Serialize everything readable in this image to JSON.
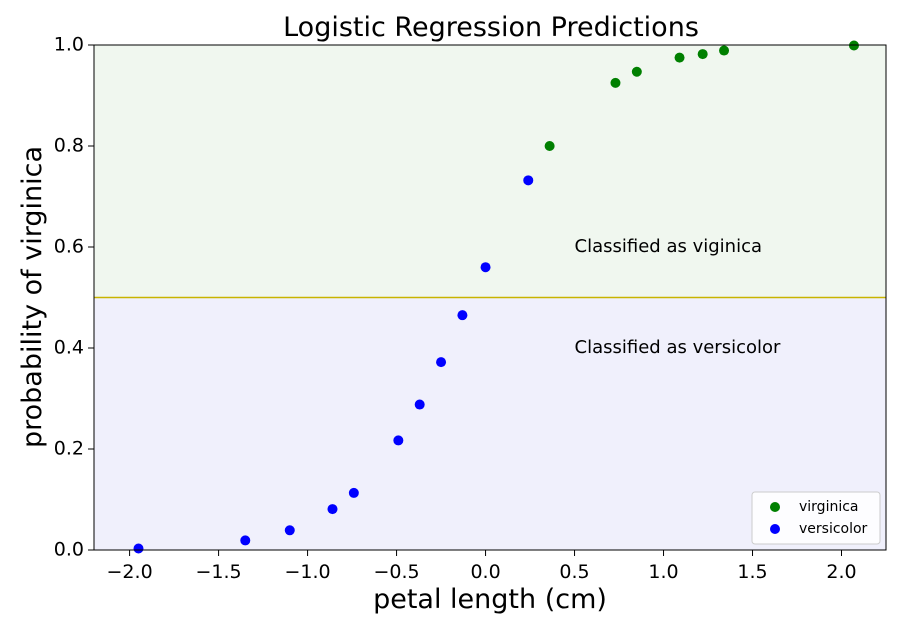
{
  "chart_data": {
    "type": "scatter",
    "title": "Logistic Regression Predictions",
    "xlabel": "petal length (cm)",
    "ylabel": "probability of virginica",
    "xlim": [
      -2.2,
      2.25
    ],
    "ylim": [
      0.0,
      1.0
    ],
    "xticks": [
      -2.0,
      -1.5,
      -1.0,
      -0.5,
      0.0,
      0.5,
      1.0,
      1.5,
      2.0
    ],
    "xtick_labels": [
      "−2.0",
      "−1.5",
      "−1.0",
      "−0.5",
      "0.0",
      "0.5",
      "1.0",
      "1.5",
      "2.0"
    ],
    "yticks": [
      0.0,
      0.2,
      0.4,
      0.6,
      0.8,
      1.0
    ],
    "ytick_labels": [
      "0.0",
      "0.2",
      "0.4",
      "0.6",
      "0.8",
      "1.0"
    ],
    "threshold": 0.5,
    "threshold_color": "#c8b400",
    "regions": [
      {
        "range": [
          0.5,
          1.0
        ],
        "color": "#f0f7ef"
      },
      {
        "range": [
          0.0,
          0.5
        ],
        "color": "#f0f0fc"
      }
    ],
    "annotations": [
      {
        "text": "Classified as viginica",
        "x": 0.5,
        "y": 0.6
      },
      {
        "text": "Classified as versicolor",
        "x": 0.5,
        "y": 0.4
      }
    ],
    "series": [
      {
        "name": "virginica",
        "color": "#008000",
        "x": [
          0.36,
          0.73,
          0.85,
          1.09,
          1.22,
          1.34,
          2.07
        ],
        "y": [
          0.8,
          0.925,
          0.947,
          0.975,
          0.982,
          0.989,
          0.999
        ]
      },
      {
        "name": "versicolor",
        "color": "#0000ff",
        "x": [
          -1.95,
          -1.35,
          -1.1,
          -0.86,
          -0.74,
          -0.49,
          -0.37,
          -0.25,
          -0.13,
          0.0,
          0.24
        ],
        "y": [
          0.003,
          0.019,
          0.039,
          0.081,
          0.113,
          0.217,
          0.288,
          0.372,
          0.465,
          0.56,
          0.732
        ]
      }
    ],
    "legend": "bottom-right",
    "grid": false
  }
}
